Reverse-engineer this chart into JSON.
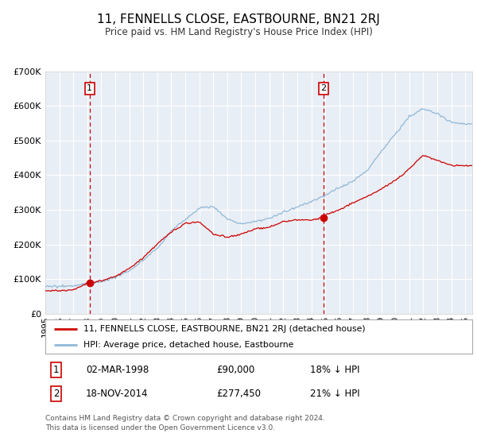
{
  "title": "11, FENNELLS CLOSE, EASTBOURNE, BN21 2RJ",
  "subtitle": "Price paid vs. HM Land Registry's House Price Index (HPI)",
  "hpi_label": "HPI: Average price, detached house, Eastbourne",
  "price_label": "11, FENNELLS CLOSE, EASTBOURNE, BN21 2RJ (detached house)",
  "sale1_date": "02-MAR-1998",
  "sale1_price": 90000,
  "sale1_pct": "18%",
  "sale2_date": "18-NOV-2014",
  "sale2_price": 277450,
  "sale2_pct": "21%",
  "sale1_year": 1998.17,
  "sale2_year": 2014.88,
  "ylim": [
    0,
    700000
  ],
  "xlim_start": 1995.0,
  "xlim_end": 2025.5,
  "background_color": "#e8eef5",
  "grid_color": "#ffffff",
  "hpi_color": "#90b8d8",
  "price_color": "#cc0000",
  "dashed_color": "#cc0000",
  "marker_color": "#cc0000",
  "footnote": "Contains HM Land Registry data © Crown copyright and database right 2024.\nThis data is licensed under the Open Government Licence v3.0.",
  "hpi_anchors_t": [
    0,
    1,
    2,
    3,
    4,
    5,
    6,
    7,
    8,
    9,
    10,
    11,
    12,
    13,
    14,
    15,
    16,
    17,
    18,
    19,
    20,
    21,
    22,
    23,
    24,
    25,
    26,
    27,
    28,
    29,
    30
  ],
  "hpi_anchors_v": [
    78000,
    80000,
    82000,
    88000,
    95000,
    105000,
    125000,
    155000,
    190000,
    240000,
    270000,
    305000,
    310000,
    275000,
    260000,
    268000,
    278000,
    295000,
    310000,
    325000,
    345000,
    365000,
    385000,
    415000,
    470000,
    520000,
    570000,
    595000,
    580000,
    555000,
    550000
  ],
  "price_anchors_t": [
    0,
    1,
    2,
    3.17,
    4,
    5,
    6,
    7,
    8,
    9,
    10,
    11,
    12,
    13,
    14,
    15,
    16,
    17,
    18,
    19,
    19.88,
    20,
    21,
    22,
    23,
    24,
    25,
    26,
    27,
    28,
    29,
    30
  ],
  "price_anchors_v": [
    67000,
    66000,
    70000,
    90000,
    95000,
    108000,
    130000,
    160000,
    200000,
    235000,
    260000,
    265000,
    230000,
    220000,
    230000,
    245000,
    250000,
    265000,
    270000,
    270000,
    277450,
    285000,
    300000,
    320000,
    340000,
    360000,
    385000,
    420000,
    460000,
    445000,
    430000,
    430000
  ]
}
